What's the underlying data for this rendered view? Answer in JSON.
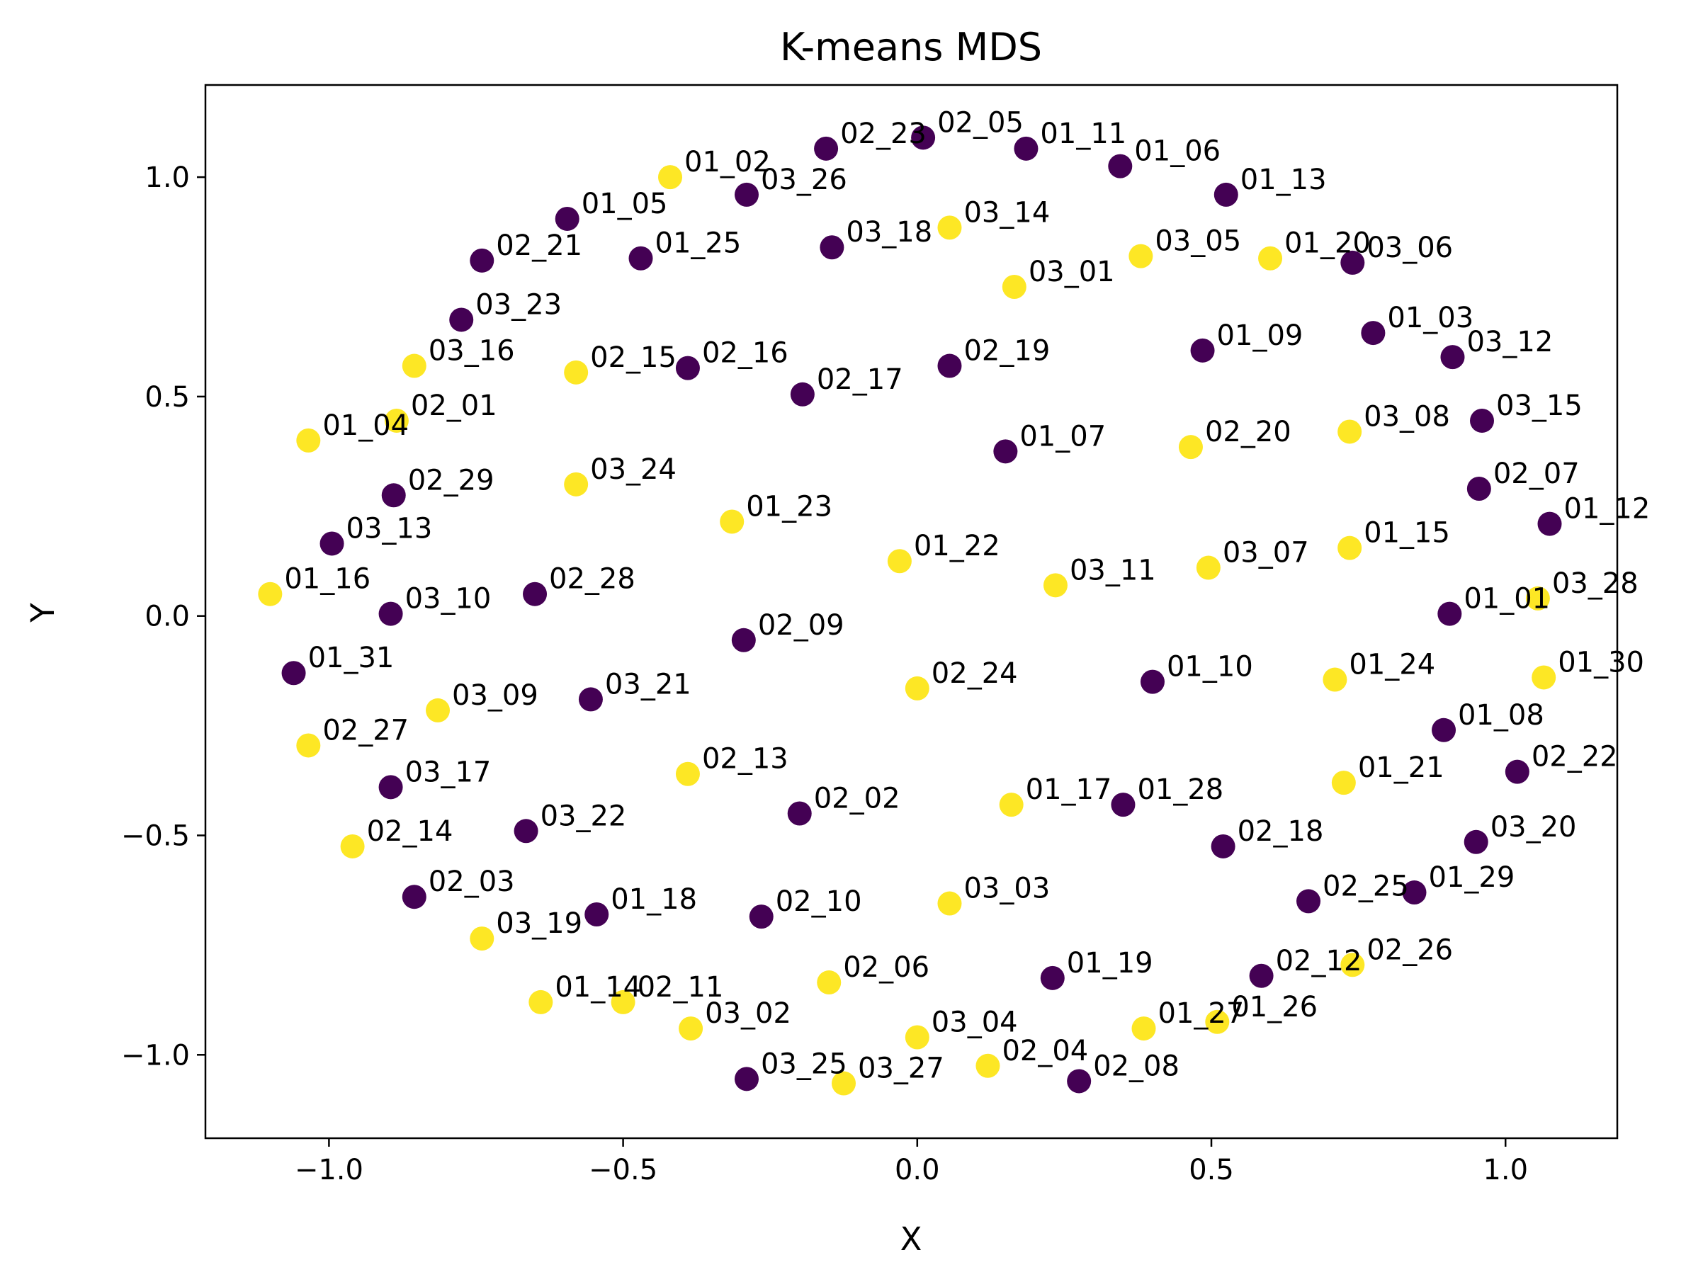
{
  "chart_data": {
    "type": "scatter",
    "title": "K-means MDS",
    "xlabel": "X",
    "ylabel": "Y",
    "xlim": [
      -1.21,
      1.19
    ],
    "ylim": [
      -1.19,
      1.21
    ],
    "x_ticks": [
      -1.0,
      -0.5,
      0.0,
      0.5,
      1.0
    ],
    "y_ticks": [
      1.0,
      0.5,
      0.0,
      -0.5,
      -1.0
    ],
    "x_tick_labels": [
      "−1.0",
      "−0.5",
      "0.0",
      "0.5",
      "1.0"
    ],
    "y_tick_labels": [
      "1.0",
      "0.5",
      "0.0",
      "−0.5",
      "−1.0"
    ],
    "grid": false,
    "cluster_colors": {
      "0": "#440154",
      "1": "#fde725"
    },
    "points": [
      {
        "label": "02_23",
        "x": -0.155,
        "y": 1.065,
        "cluster": 0
      },
      {
        "label": "02_05",
        "x": 0.01,
        "y": 1.09,
        "cluster": 0
      },
      {
        "label": "01_11",
        "x": 0.185,
        "y": 1.065,
        "cluster": 0
      },
      {
        "label": "01_06",
        "x": 0.345,
        "y": 1.025,
        "cluster": 0
      },
      {
        "label": "01_02",
        "x": -0.42,
        "y": 1.0,
        "cluster": 1
      },
      {
        "label": "03_26",
        "x": -0.29,
        "y": 0.96,
        "cluster": 0
      },
      {
        "label": "01_13",
        "x": 0.525,
        "y": 0.96,
        "cluster": 0
      },
      {
        "label": "01_05",
        "x": -0.595,
        "y": 0.905,
        "cluster": 0
      },
      {
        "label": "03_14",
        "x": 0.055,
        "y": 0.885,
        "cluster": 1
      },
      {
        "label": "03_18",
        "x": -0.145,
        "y": 0.84,
        "cluster": 0
      },
      {
        "label": "03_05",
        "x": 0.38,
        "y": 0.82,
        "cluster": 1
      },
      {
        "label": "01_20",
        "x": 0.6,
        "y": 0.815,
        "cluster": 1
      },
      {
        "label": "03_06",
        "x": 0.74,
        "y": 0.805,
        "cluster": 0
      },
      {
        "label": "02_21",
        "x": -0.74,
        "y": 0.81,
        "cluster": 0
      },
      {
        "label": "01_25",
        "x": -0.47,
        "y": 0.815,
        "cluster": 0
      },
      {
        "label": "03_01",
        "x": 0.165,
        "y": 0.75,
        "cluster": 1
      },
      {
        "label": "03_23",
        "x": -0.775,
        "y": 0.675,
        "cluster": 0
      },
      {
        "label": "01_03",
        "x": 0.775,
        "y": 0.645,
        "cluster": 0
      },
      {
        "label": "01_09",
        "x": 0.485,
        "y": 0.605,
        "cluster": 0
      },
      {
        "label": "03_12",
        "x": 0.91,
        "y": 0.59,
        "cluster": 0
      },
      {
        "label": "03_16",
        "x": -0.855,
        "y": 0.57,
        "cluster": 1
      },
      {
        "label": "02_15",
        "x": -0.58,
        "y": 0.555,
        "cluster": 1
      },
      {
        "label": "02_16",
        "x": -0.39,
        "y": 0.565,
        "cluster": 0
      },
      {
        "label": "02_19",
        "x": 0.055,
        "y": 0.57,
        "cluster": 0
      },
      {
        "label": "02_17",
        "x": -0.195,
        "y": 0.505,
        "cluster": 0
      },
      {
        "label": "02_01",
        "x": -0.885,
        "y": 0.445,
        "cluster": 1
      },
      {
        "label": "03_15",
        "x": 0.96,
        "y": 0.445,
        "cluster": 0
      },
      {
        "label": "03_08",
        "x": 0.735,
        "y": 0.42,
        "cluster": 1
      },
      {
        "label": "01_04",
        "x": -1.035,
        "y": 0.4,
        "cluster": 1
      },
      {
        "label": "02_20",
        "x": 0.465,
        "y": 0.385,
        "cluster": 1
      },
      {
        "label": "01_07",
        "x": 0.15,
        "y": 0.375,
        "cluster": 0
      },
      {
        "label": "03_24",
        "x": -0.58,
        "y": 0.3,
        "cluster": 1
      },
      {
        "label": "02_07",
        "x": 0.955,
        "y": 0.29,
        "cluster": 0
      },
      {
        "label": "02_29",
        "x": -0.89,
        "y": 0.275,
        "cluster": 0
      },
      {
        "label": "01_23",
        "x": -0.315,
        "y": 0.215,
        "cluster": 1
      },
      {
        "label": "01_12",
        "x": 1.075,
        "y": 0.21,
        "cluster": 0
      },
      {
        "label": "03_13",
        "x": -0.995,
        "y": 0.165,
        "cluster": 0
      },
      {
        "label": "01_15",
        "x": 0.735,
        "y": 0.155,
        "cluster": 1
      },
      {
        "label": "01_22",
        "x": -0.03,
        "y": 0.125,
        "cluster": 1
      },
      {
        "label": "03_07",
        "x": 0.495,
        "y": 0.11,
        "cluster": 1
      },
      {
        "label": "03_11",
        "x": 0.235,
        "y": 0.07,
        "cluster": 1
      },
      {
        "label": "02_28",
        "x": -0.65,
        "y": 0.05,
        "cluster": 0
      },
      {
        "label": "01_16",
        "x": -1.1,
        "y": 0.05,
        "cluster": 1
      },
      {
        "label": "03_28",
        "x": 1.055,
        "y": 0.04,
        "cluster": 1
      },
      {
        "label": "01_01",
        "x": 0.905,
        "y": 0.005,
        "cluster": 0
      },
      {
        "label": "03_10",
        "x": -0.895,
        "y": 0.005,
        "cluster": 0
      },
      {
        "label": "02_09",
        "x": -0.295,
        "y": -0.055,
        "cluster": 0
      },
      {
        "label": "01_31",
        "x": -1.06,
        "y": -0.13,
        "cluster": 0
      },
      {
        "label": "01_30",
        "x": 1.065,
        "y": -0.14,
        "cluster": 1
      },
      {
        "label": "01_24",
        "x": 0.71,
        "y": -0.145,
        "cluster": 1
      },
      {
        "label": "01_10",
        "x": 0.4,
        "y": -0.15,
        "cluster": 0
      },
      {
        "label": "02_24",
        "x": 0.0,
        "y": -0.165,
        "cluster": 1
      },
      {
        "label": "03_21",
        "x": -0.555,
        "y": -0.19,
        "cluster": 0
      },
      {
        "label": "03_09",
        "x": -0.815,
        "y": -0.215,
        "cluster": 1
      },
      {
        "label": "01_08",
        "x": 0.895,
        "y": -0.26,
        "cluster": 0
      },
      {
        "label": "02_27",
        "x": -1.035,
        "y": -0.295,
        "cluster": 1
      },
      {
        "label": "02_22",
        "x": 1.02,
        "y": -0.355,
        "cluster": 0
      },
      {
        "label": "02_13",
        "x": -0.39,
        "y": -0.36,
        "cluster": 1
      },
      {
        "label": "01_21",
        "x": 0.725,
        "y": -0.38,
        "cluster": 1
      },
      {
        "label": "03_17",
        "x": -0.895,
        "y": -0.39,
        "cluster": 0
      },
      {
        "label": "01_17",
        "x": 0.16,
        "y": -0.43,
        "cluster": 1
      },
      {
        "label": "01_28",
        "x": 0.35,
        "y": -0.43,
        "cluster": 0
      },
      {
        "label": "02_02",
        "x": -0.2,
        "y": -0.45,
        "cluster": 0
      },
      {
        "label": "03_22",
        "x": -0.665,
        "y": -0.49,
        "cluster": 0
      },
      {
        "label": "03_20",
        "x": 0.95,
        "y": -0.515,
        "cluster": 0
      },
      {
        "label": "02_14",
        "x": -0.96,
        "y": -0.525,
        "cluster": 1
      },
      {
        "label": "02_18",
        "x": 0.52,
        "y": -0.525,
        "cluster": 0
      },
      {
        "label": "01_29",
        "x": 0.845,
        "y": -0.63,
        "cluster": 0
      },
      {
        "label": "02_03",
        "x": -0.855,
        "y": -0.64,
        "cluster": 0
      },
      {
        "label": "02_25",
        "x": 0.665,
        "y": -0.65,
        "cluster": 0
      },
      {
        "label": "03_03",
        "x": 0.055,
        "y": -0.655,
        "cluster": 1
      },
      {
        "label": "01_18",
        "x": -0.545,
        "y": -0.68,
        "cluster": 0
      },
      {
        "label": "02_10",
        "x": -0.265,
        "y": -0.685,
        "cluster": 0
      },
      {
        "label": "03_19",
        "x": -0.74,
        "y": -0.735,
        "cluster": 1
      },
      {
        "label": "02_26",
        "x": 0.74,
        "y": -0.795,
        "cluster": 1
      },
      {
        "label": "02_12",
        "x": 0.585,
        "y": -0.82,
        "cluster": 0
      },
      {
        "label": "01_19",
        "x": 0.23,
        "y": -0.825,
        "cluster": 0
      },
      {
        "label": "02_06",
        "x": -0.15,
        "y": -0.835,
        "cluster": 1
      },
      {
        "label": "01_14",
        "x": -0.64,
        "y": -0.88,
        "cluster": 1
      },
      {
        "label": "02_11",
        "x": -0.5,
        "y": -0.88,
        "cluster": 1
      },
      {
        "label": "01_26",
        "x": 0.51,
        "y": -0.925,
        "cluster": 1
      },
      {
        "label": "01_27",
        "x": 0.385,
        "y": -0.94,
        "cluster": 1
      },
      {
        "label": "03_02",
        "x": -0.385,
        "y": -0.94,
        "cluster": 1
      },
      {
        "label": "03_04",
        "x": 0.0,
        "y": -0.96,
        "cluster": 1
      },
      {
        "label": "02_04",
        "x": 0.12,
        "y": -1.025,
        "cluster": 1
      },
      {
        "label": "03_25",
        "x": -0.29,
        "y": -1.055,
        "cluster": 0
      },
      {
        "label": "02_08",
        "x": 0.275,
        "y": -1.06,
        "cluster": 0
      },
      {
        "label": "03_27",
        "x": -0.125,
        "y": -1.065,
        "cluster": 1
      }
    ]
  }
}
